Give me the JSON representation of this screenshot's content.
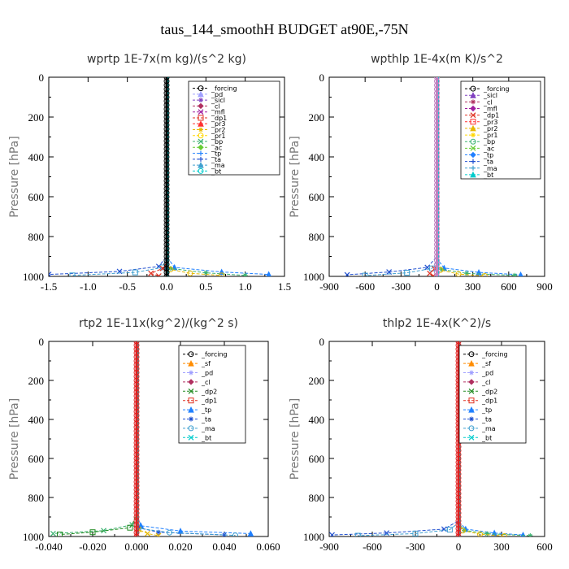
{
  "figure": {
    "title": "taus_144_smoothH  BUDGET at90E,-75N"
  },
  "chart_data": [
    {
      "type": "line",
      "title": "wprtp  1E-7x(m kg)/(s^2 kg)",
      "xlabel": "",
      "ylabel": "Pressure [hPa]",
      "xlim": [
        -1.5,
        1.5
      ],
      "ylim": [
        1000,
        0
      ],
      "xticks": [
        -1.5,
        -1.0,
        -0.5,
        0.0,
        0.5,
        1.0,
        1.5
      ],
      "xtick_labels": [
        "-1.5",
        "-1.0",
        "-0.5",
        "0.0",
        "0.5",
        "1.0",
        "1.5"
      ],
      "yticks": [
        0,
        200,
        400,
        600,
        800,
        1000
      ],
      "legend": [
        "_forcing",
        "_pd",
        "_sicl",
        "_cl",
        "_mfl",
        "_dp1",
        "_pr3",
        "_pr2",
        "_pr1",
        "_bp",
        "_ac",
        "_tp",
        "_ta",
        "_ma",
        "_bt"
      ],
      "legend_position": "top-right",
      "series": [
        {
          "name": "_forcing",
          "color": "#000000",
          "x": [
            0,
            0,
            0,
            0
          ],
          "y": [
            0,
            500,
            900,
            1000
          ]
        },
        {
          "name": "_ta",
          "color": "#2050d0",
          "x": [
            0,
            0,
            -0.1,
            -0.6,
            -1.5
          ],
          "y": [
            0,
            900,
            950,
            975,
            990
          ]
        },
        {
          "name": "_ma",
          "color": "#40a0d0",
          "x": [
            0,
            0,
            -0.05,
            -0.4,
            -1.2
          ],
          "y": [
            0,
            900,
            955,
            980,
            995
          ]
        },
        {
          "name": "_tp",
          "color": "#2080ff",
          "x": [
            0,
            0,
            0.1,
            0.7,
            1.3
          ],
          "y": [
            0,
            900,
            955,
            978,
            990
          ]
        },
        {
          "name": "_bp",
          "color": "#3cb371",
          "x": [
            0,
            0,
            0.05,
            0.5,
            1.0
          ],
          "y": [
            0,
            920,
            960,
            982,
            995
          ]
        },
        {
          "name": "_pr2",
          "color": "#e6b800",
          "x": [
            0,
            0,
            0.05,
            0.3,
            0.7
          ],
          "y": [
            0,
            930,
            965,
            985,
            995
          ]
        },
        {
          "name": "_dp1",
          "color": "#e03020",
          "x": [
            0,
            0,
            -0.05,
            -0.2,
            -0.1
          ],
          "y": [
            0,
            930,
            960,
            985,
            998
          ]
        },
        {
          "name": "_bt",
          "color": "#00cccc",
          "x": [
            0,
            0,
            0
          ],
          "y": [
            0,
            500,
            1000
          ]
        }
      ]
    },
    {
      "type": "line",
      "title": "wpthlp  1E-4x(m K)/s^2",
      "xlabel": "",
      "ylabel": "Pressure [hPa]",
      "xlim": [
        -900,
        900
      ],
      "ylim": [
        1000,
        0
      ],
      "xticks": [
        -900,
        -600,
        -300,
        0,
        300,
        600,
        900
      ],
      "xtick_labels": [
        "-900",
        "-600",
        "-300",
        "0",
        "300",
        "600",
        "900"
      ],
      "yticks": [
        0,
        200,
        400,
        600,
        800,
        1000
      ],
      "legend": [
        "_forcing",
        "_sicl",
        "_cl",
        "_mfl",
        "_dp1",
        "_pr3",
        "_pr2",
        "_pr1",
        "_bp",
        "_ac",
        "_tp",
        "_ta",
        "_ma",
        "_bt"
      ],
      "legend_position": "top-right",
      "series": [
        {
          "name": "_forcing",
          "color": "#c080c0",
          "x": [
            0,
            0,
            0,
            0
          ],
          "y": [
            0,
            500,
            900,
            1000
          ]
        },
        {
          "name": "_ta",
          "color": "#2050d0",
          "x": [
            0,
            0,
            -80,
            -400,
            -750
          ],
          "y": [
            0,
            900,
            955,
            978,
            992
          ]
        },
        {
          "name": "_ma",
          "color": "#40a0d0",
          "x": [
            0,
            0,
            -40,
            -250,
            -600
          ],
          "y": [
            0,
            920,
            960,
            982,
            996
          ]
        },
        {
          "name": "_tp",
          "color": "#2080ff",
          "x": [
            0,
            0,
            60,
            350,
            700
          ],
          "y": [
            0,
            910,
            958,
            980,
            992
          ]
        },
        {
          "name": "_bp",
          "color": "#3cb371",
          "x": [
            0,
            0,
            40,
            250,
            650
          ],
          "y": [
            0,
            930,
            965,
            985,
            995
          ]
        },
        {
          "name": "_pr2",
          "color": "#e6b800",
          "x": [
            0,
            0,
            30,
            180,
            400
          ],
          "y": [
            0,
            930,
            968,
            988,
            998
          ]
        },
        {
          "name": "_dp1",
          "color": "#e03020",
          "x": [
            0,
            0,
            -20,
            -60,
            -30
          ],
          "y": [
            0,
            930,
            962,
            985,
            998
          ]
        },
        {
          "name": "_bt",
          "color": "#00cccc",
          "x": [
            0,
            0,
            0
          ],
          "y": [
            0,
            500,
            1000
          ]
        }
      ]
    },
    {
      "type": "line",
      "title": "rtp2  1E-11x(kg^2)/(kg^2 s)",
      "xlabel": "",
      "ylabel": "Pressure [hPa]",
      "xlim": [
        -0.04,
        0.06
      ],
      "ylim": [
        1000,
        0
      ],
      "xticks": [
        -0.04,
        -0.02,
        0.0,
        0.02,
        0.04,
        0.06
      ],
      "xtick_labels": [
        "-0.040",
        "-0.020",
        "0.000",
        "0.020",
        "0.040",
        "0.060"
      ],
      "yticks": [
        0,
        200,
        400,
        600,
        800,
        1000
      ],
      "legend": [
        "_forcing",
        "_sf",
        "_pd",
        "_cl",
        "_dp2",
        "_dp1",
        "_tp",
        "_ta",
        "_ma",
        "_bt"
      ],
      "legend_position": "top-right",
      "series": [
        {
          "name": "_forcing",
          "color": "#e02020",
          "x": [
            0,
            0,
            0,
            0
          ],
          "y": [
            0,
            500,
            900,
            1000
          ]
        },
        {
          "name": "_dp1",
          "color": "#3cb371",
          "x": [
            0,
            0,
            -0.002,
            -0.015,
            -0.038
          ],
          "y": [
            0,
            880,
            940,
            970,
            985
          ]
        },
        {
          "name": "_dp2",
          "color": "#228b22",
          "x": [
            0,
            0,
            -0.003,
            -0.02,
            -0.035
          ],
          "y": [
            0,
            900,
            955,
            978,
            990
          ]
        },
        {
          "name": "_tp",
          "color": "#2080ff",
          "x": [
            0,
            0,
            0.002,
            0.02,
            0.052
          ],
          "y": [
            0,
            880,
            945,
            972,
            985
          ]
        },
        {
          "name": "_ta",
          "color": "#2050d0",
          "x": [
            0,
            0,
            0.001,
            0.01,
            0.04
          ],
          "y": [
            0,
            900,
            955,
            978,
            992
          ]
        },
        {
          "name": "_ma",
          "color": "#40a0d0",
          "x": [
            0,
            0,
            0.001,
            0.015,
            0.045
          ],
          "y": [
            0,
            910,
            958,
            980,
            994
          ]
        },
        {
          "name": "_cl",
          "color": "#e6b800",
          "x": [
            0,
            0,
            0.001,
            0.005,
            0.01
          ],
          "y": [
            0,
            930,
            965,
            985,
            996
          ]
        },
        {
          "name": "_bt",
          "color": "#00cccc",
          "x": [
            0,
            0,
            0
          ],
          "y": [
            0,
            500,
            1000
          ]
        }
      ]
    },
    {
      "type": "line",
      "title": "thlp2  1E-4x(K^2)/s",
      "xlabel": "",
      "ylabel": "Pressure [hPa]",
      "xlim": [
        -900,
        600
      ],
      "ylim": [
        1000,
        0
      ],
      "xticks": [
        -900,
        -600,
        -300,
        0,
        300,
        600
      ],
      "xtick_labels": [
        "-900",
        "-600",
        "-300",
        "0",
        "300",
        "600"
      ],
      "yticks": [
        0,
        200,
        400,
        600,
        800,
        1000
      ],
      "legend": [
        "_forcing",
        "_sf",
        "_pd",
        "_cl",
        "_dp2",
        "_dp1",
        "_tp",
        "_ta",
        "_ma",
        "_bt"
      ],
      "legend_position": "top-right",
      "series": [
        {
          "name": "_forcing",
          "color": "#e02020",
          "x": [
            0,
            0,
            0,
            0
          ],
          "y": [
            0,
            500,
            900,
            1000
          ]
        },
        {
          "name": "_ta",
          "color": "#2050d0",
          "x": [
            0,
            0,
            -100,
            -500,
            -880
          ],
          "y": [
            0,
            920,
            962,
            982,
            992
          ]
        },
        {
          "name": "_ma",
          "color": "#40a0d0",
          "x": [
            0,
            0,
            -60,
            -300,
            -700
          ],
          "y": [
            0,
            930,
            965,
            985,
            996
          ]
        },
        {
          "name": "_tp",
          "color": "#2080ff",
          "x": [
            0,
            0,
            50,
            250,
            450
          ],
          "y": [
            0,
            920,
            962,
            982,
            992
          ]
        },
        {
          "name": "_dp1",
          "color": "#3cb371",
          "x": [
            0,
            0,
            40,
            200,
            500
          ],
          "y": [
            0,
            930,
            968,
            986,
            996
          ]
        },
        {
          "name": "_cl",
          "color": "#e6b800",
          "x": [
            0,
            0,
            30,
            150,
            320
          ],
          "y": [
            0,
            935,
            970,
            988,
            998
          ]
        },
        {
          "name": "_bt",
          "color": "#00cccc",
          "x": [
            0,
            0,
            0
          ],
          "y": [
            0,
            500,
            1000
          ]
        }
      ]
    }
  ],
  "legend_colors": {
    "_forcing": "#000000",
    "_pd": "#a0a0ff",
    "_sicl": "#8040c0",
    "_cl": "#b03060",
    "_mfl": "#a020a0",
    "_dp1": "#e03020",
    "_pr3": "#ff3030",
    "_pr2": "#e6b800",
    "_pr1": "#ffd700",
    "_bp": "#3cb371",
    "_ac": "#66cc33",
    "_tp": "#2080ff",
    "_ta": "#2050d0",
    "_ma": "#40a0d0",
    "_bt": "#00cccc",
    "_sf": "#ff8c00",
    "_dp2": "#228b22"
  }
}
